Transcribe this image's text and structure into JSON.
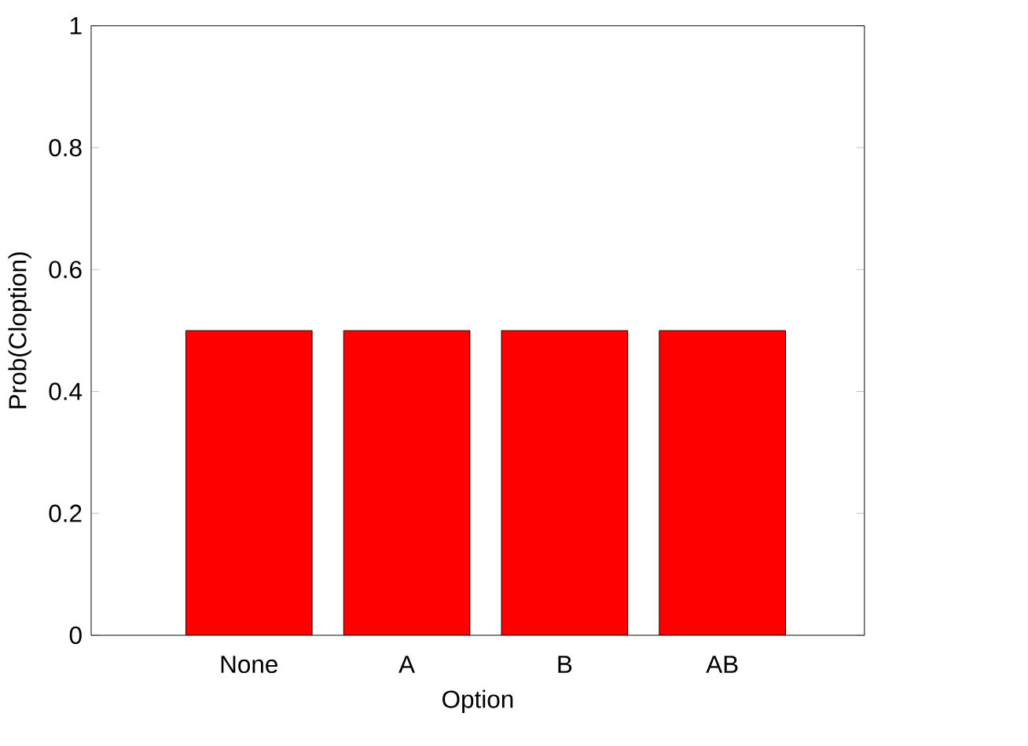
{
  "chart_data": {
    "type": "bar",
    "xlabel": "Option",
    "ylabel": "Prob(Cloption)",
    "categories": [
      "None",
      "A",
      "B",
      "AB"
    ],
    "values": [
      0.5,
      0.5,
      0.5,
      0.5
    ],
    "color": "#ff0000",
    "ylim": [
      0,
      1
    ],
    "yticks": [
      0,
      0.2,
      0.4,
      0.6,
      0.8,
      1
    ]
  }
}
